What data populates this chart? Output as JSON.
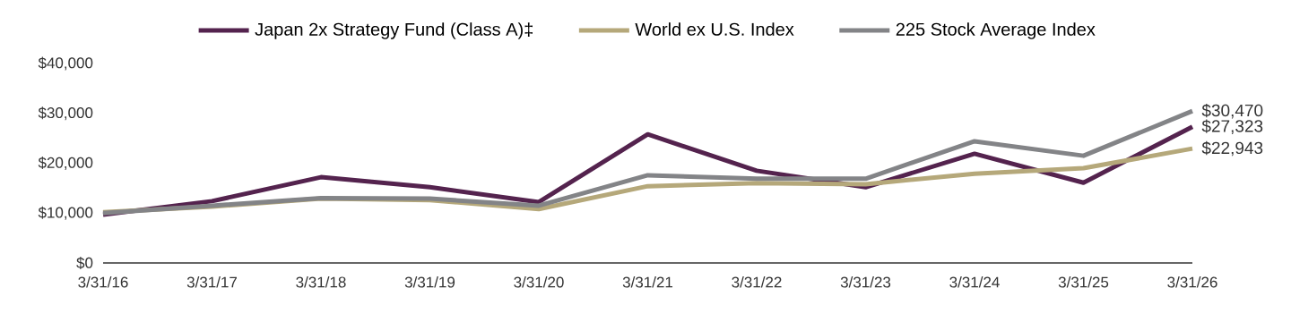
{
  "chart_data": {
    "type": "line",
    "categories": [
      "3/31/16",
      "3/31/17",
      "3/31/18",
      "3/31/19",
      "3/31/20",
      "3/31/21",
      "3/31/22",
      "3/31/23",
      "3/31/24",
      "3/31/25",
      "3/31/26"
    ],
    "series": [
      {
        "name": "Japan 2x Strategy Fund (Class A)‡",
        "color": "#54234e",
        "values": [
          9700,
          12400,
          17200,
          15200,
          12200,
          25800,
          18500,
          15200,
          21900,
          16100,
          27323
        ],
        "value_labels": [
          null,
          null,
          null,
          null,
          null,
          null,
          null,
          null,
          null,
          null,
          "$27,323"
        ]
      },
      {
        "name": "World ex U.S. Index",
        "color": "#b5a87a",
        "values": [
          10200,
          11300,
          12900,
          12600,
          10800,
          15400,
          16000,
          15800,
          17900,
          19000,
          22943
        ],
        "value_labels": [
          null,
          null,
          null,
          null,
          null,
          null,
          null,
          null,
          null,
          null,
          "$22,943"
        ]
      },
      {
        "name": "225 Stock Average Index",
        "color": "#838487",
        "values": [
          10000,
          11500,
          13000,
          12900,
          11500,
          17600,
          16900,
          16900,
          24400,
          21500,
          30470
        ],
        "value_labels": [
          null,
          null,
          null,
          null,
          null,
          null,
          null,
          null,
          null,
          null,
          "$30,470"
        ]
      }
    ],
    "ylim": [
      0,
      40000
    ],
    "yticks": [
      {
        "value": 0,
        "label": "$0"
      },
      {
        "value": 10000,
        "label": "$10,000"
      },
      {
        "value": 20000,
        "label": "$20,000"
      },
      {
        "value": 30000,
        "label": "$30,000"
      },
      {
        "value": 40000,
        "label": "$40,000"
      }
    ],
    "grid": false,
    "legend": "top",
    "marker": "none",
    "line_style": "solid"
  }
}
